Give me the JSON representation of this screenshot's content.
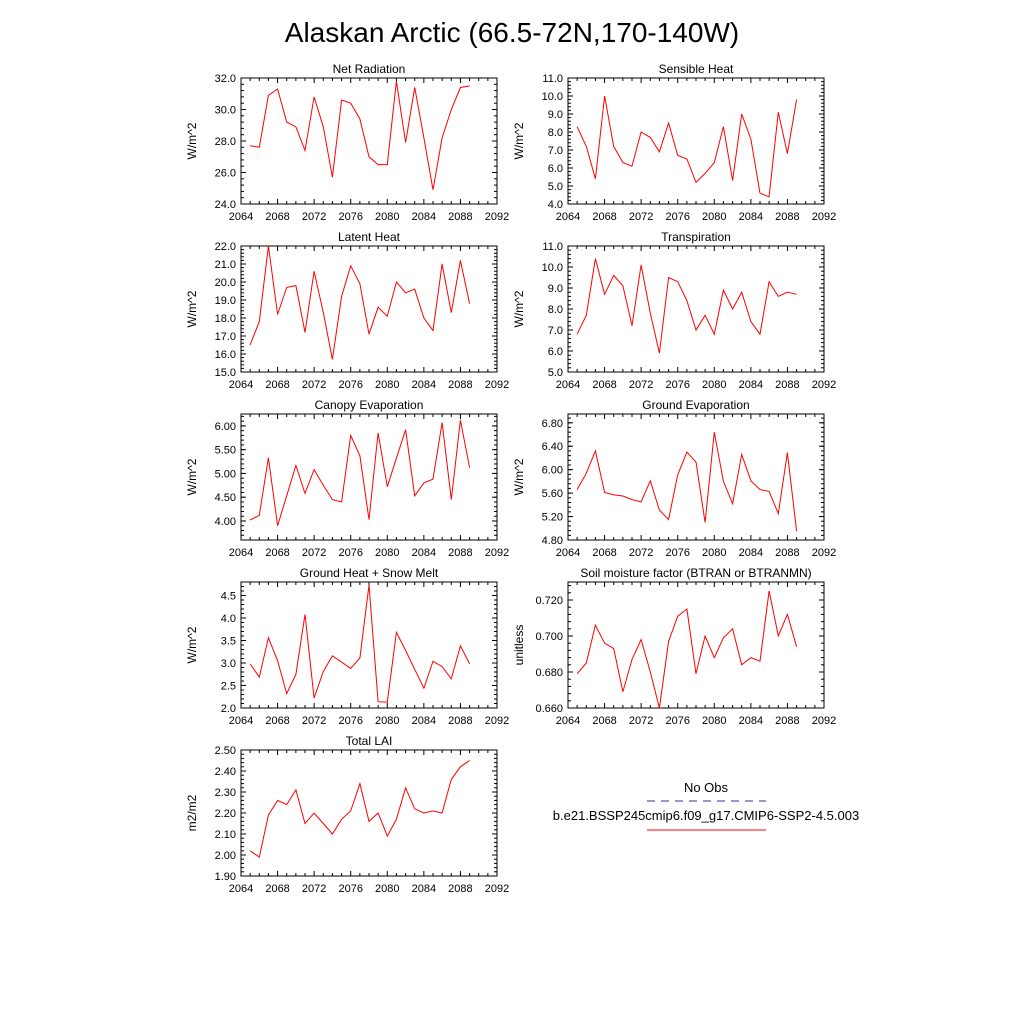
{
  "title": "Alaskan Arctic (66.5-72N,170-140W)",
  "legend": {
    "obs_label": "No Obs",
    "obs_color": "#3030a0",
    "model_label": "b.e21.BSSP245cmip6.f09_g17.CMIP6-SSP2-4.5.003",
    "model_color": "#ff0000"
  },
  "chart_data": [
    {
      "type": "line",
      "title": "Net Radiation",
      "ylabel": "W/m^2",
      "x": [
        2065,
        2066,
        2067,
        2068,
        2069,
        2070,
        2071,
        2072,
        2073,
        2074,
        2075,
        2076,
        2077,
        2078,
        2079,
        2080,
        2081,
        2082,
        2083,
        2084,
        2085,
        2086,
        2087,
        2088,
        2089
      ],
      "series": [
        {
          "values": [
            27.7,
            27.6,
            30.9,
            31.3,
            29.2,
            28.9,
            27.4,
            30.8,
            28.9,
            25.7,
            30.6,
            30.4,
            29.4,
            27.0,
            26.5,
            26.5,
            31.8,
            27.9,
            31.4,
            28.2,
            24.9,
            28.2,
            30.0,
            31.4,
            31.5
          ]
        }
      ],
      "xlim": [
        2064,
        2092
      ],
      "ylim": [
        24,
        32
      ],
      "xticks": [
        "2064",
        "2068",
        "2072",
        "2076",
        "2080",
        "2084",
        "2088",
        "2092"
      ],
      "yticks": [
        "24.0",
        "26.0",
        "28.0",
        "30.0",
        "32.0"
      ]
    },
    {
      "type": "line",
      "title": "Sensible Heat",
      "ylabel": "W/m^2",
      "x": [
        2065,
        2066,
        2067,
        2068,
        2069,
        2070,
        2071,
        2072,
        2073,
        2074,
        2075,
        2076,
        2077,
        2078,
        2079,
        2080,
        2081,
        2082,
        2083,
        2084,
        2085,
        2086,
        2087,
        2088,
        2089
      ],
      "series": [
        {
          "values": [
            8.3,
            7.2,
            5.4,
            10.0,
            7.2,
            6.3,
            6.1,
            8.0,
            7.7,
            6.9,
            8.5,
            6.7,
            6.5,
            5.2,
            5.7,
            6.3,
            8.3,
            5.3,
            9.0,
            7.6,
            4.6,
            4.4,
            9.1,
            6.8,
            9.8
          ]
        }
      ],
      "xlim": [
        2064,
        2092
      ],
      "ylim": [
        4,
        11
      ],
      "xticks": [
        "2064",
        "2068",
        "2072",
        "2076",
        "2080",
        "2084",
        "2088",
        "2092"
      ],
      "yticks": [
        "4.0",
        "5.0",
        "6.0",
        "7.0",
        "8.0",
        "9.0",
        "10.0",
        "11.0"
      ]
    },
    {
      "type": "line",
      "title": "Latent Heat",
      "ylabel": "W/m^2",
      "x": [
        2065,
        2066,
        2067,
        2068,
        2069,
        2070,
        2071,
        2072,
        2073,
        2074,
        2075,
        2076,
        2077,
        2078,
        2079,
        2080,
        2081,
        2082,
        2083,
        2084,
        2085,
        2086,
        2087,
        2088,
        2089
      ],
      "series": [
        {
          "values": [
            16.5,
            17.8,
            22.0,
            18.2,
            19.7,
            19.8,
            17.2,
            20.6,
            18.3,
            15.7,
            19.2,
            20.9,
            19.9,
            17.1,
            18.6,
            18.1,
            20.0,
            19.4,
            19.6,
            18.0,
            17.3,
            21.0,
            18.3,
            21.2,
            18.8
          ]
        }
      ],
      "xlim": [
        2064,
        2092
      ],
      "ylim": [
        15,
        22
      ],
      "xticks": [
        "2064",
        "2068",
        "2072",
        "2076",
        "2080",
        "2084",
        "2088",
        "2092"
      ],
      "yticks": [
        "15.0",
        "16.0",
        "17.0",
        "18.0",
        "19.0",
        "20.0",
        "21.0",
        "22.0"
      ]
    },
    {
      "type": "line",
      "title": "Transpiration",
      "ylabel": "W/m^2",
      "x": [
        2065,
        2066,
        2067,
        2068,
        2069,
        2070,
        2071,
        2072,
        2073,
        2074,
        2075,
        2076,
        2077,
        2078,
        2079,
        2080,
        2081,
        2082,
        2083,
        2084,
        2085,
        2086,
        2087,
        2088,
        2089
      ],
      "series": [
        {
          "values": [
            6.8,
            7.7,
            10.4,
            8.7,
            9.6,
            9.1,
            7.2,
            10.1,
            7.8,
            5.9,
            9.5,
            9.3,
            8.4,
            7.0,
            7.7,
            6.8,
            8.9,
            8.0,
            8.8,
            7.4,
            6.8,
            9.3,
            8.6,
            8.8,
            8.7
          ]
        }
      ],
      "xlim": [
        2064,
        2092
      ],
      "ylim": [
        5,
        11
      ],
      "xticks": [
        "2064",
        "2068",
        "2072",
        "2076",
        "2080",
        "2084",
        "2088",
        "2092"
      ],
      "yticks": [
        "5.0",
        "6.0",
        "7.0",
        "8.0",
        "9.0",
        "10.0",
        "11.0"
      ]
    },
    {
      "type": "line",
      "title": "Canopy Evaporation",
      "ylabel": "W/m^2",
      "x": [
        2065,
        2066,
        2067,
        2068,
        2069,
        2070,
        2071,
        2072,
        2073,
        2074,
        2075,
        2076,
        2077,
        2078,
        2079,
        2080,
        2081,
        2082,
        2083,
        2084,
        2085,
        2086,
        2087,
        2088,
        2089
      ],
      "series": [
        {
          "values": [
            4.02,
            4.12,
            5.33,
            3.9,
            4.53,
            5.17,
            4.58,
            5.08,
            4.75,
            4.45,
            4.4,
            5.8,
            5.37,
            4.03,
            5.85,
            4.72,
            5.32,
            5.92,
            4.53,
            4.8,
            4.88,
            6.07,
            4.45,
            6.12,
            5.12
          ]
        }
      ],
      "xlim": [
        2064,
        2092
      ],
      "ylim": [
        3.6,
        6.25
      ],
      "xticks": [
        "2064",
        "2068",
        "2072",
        "2076",
        "2080",
        "2084",
        "2088",
        "2092"
      ],
      "yticks": [
        "4.00",
        "4.50",
        "5.00",
        "5.50",
        "6.00"
      ]
    },
    {
      "type": "line",
      "title": "Ground Evaporation",
      "ylabel": "W/m^2",
      "x": [
        2065,
        2066,
        2067,
        2068,
        2069,
        2070,
        2071,
        2072,
        2073,
        2074,
        2075,
        2076,
        2077,
        2078,
        2079,
        2080,
        2081,
        2082,
        2083,
        2084,
        2085,
        2086,
        2087,
        2088,
        2089
      ],
      "series": [
        {
          "values": [
            5.66,
            5.94,
            6.32,
            5.61,
            5.57,
            5.55,
            5.49,
            5.45,
            5.81,
            5.31,
            5.15,
            5.91,
            6.3,
            6.13,
            5.1,
            6.64,
            5.8,
            5.42,
            6.26,
            5.81,
            5.66,
            5.63,
            5.25,
            6.29,
            4.95
          ]
        }
      ],
      "xlim": [
        2064,
        2092
      ],
      "ylim": [
        4.8,
        6.95
      ],
      "xticks": [
        "2064",
        "2068",
        "2072",
        "2076",
        "2080",
        "2084",
        "2088",
        "2092"
      ],
      "yticks": [
        "4.80",
        "5.20",
        "5.60",
        "6.00",
        "6.40",
        "6.80"
      ]
    },
    {
      "type": "line",
      "title": "Ground Heat + Snow Melt",
      "ylabel": "W/m^2",
      "x": [
        2065,
        2066,
        2067,
        2068,
        2069,
        2070,
        2071,
        2072,
        2073,
        2074,
        2075,
        2076,
        2077,
        2078,
        2079,
        2080,
        2081,
        2082,
        2083,
        2084,
        2085,
        2086,
        2087,
        2088,
        2089
      ],
      "series": [
        {
          "values": [
            2.98,
            2.69,
            3.56,
            3.05,
            2.32,
            2.75,
            4.08,
            2.22,
            2.81,
            3.16,
            3.02,
            2.88,
            3.11,
            4.73,
            2.14,
            2.13,
            3.68,
            3.28,
            2.86,
            2.44,
            3.04,
            2.92,
            2.65,
            3.38,
            2.98
          ]
        }
      ],
      "xlim": [
        2064,
        2092
      ],
      "ylim": [
        2.0,
        4.8
      ],
      "xticks": [
        "2064",
        "2068",
        "2072",
        "2076",
        "2080",
        "2084",
        "2088",
        "2092"
      ],
      "yticks": [
        "2.0",
        "2.5",
        "3.0",
        "3.5",
        "4.0",
        "4.5"
      ]
    },
    {
      "type": "line",
      "title": "Soil moisture factor (BTRAN or BTRANMN)",
      "ylabel": "unitless",
      "x": [
        2065,
        2066,
        2067,
        2068,
        2069,
        2070,
        2071,
        2072,
        2073,
        2074,
        2075,
        2076,
        2077,
        2078,
        2079,
        2080,
        2081,
        2082,
        2083,
        2084,
        2085,
        2086,
        2087,
        2088,
        2089
      ],
      "series": [
        {
          "values": [
            0.679,
            0.685,
            0.706,
            0.696,
            0.693,
            0.669,
            0.687,
            0.698,
            0.68,
            0.66,
            0.697,
            0.711,
            0.715,
            0.679,
            0.7,
            0.688,
            0.699,
            0.704,
            0.684,
            0.688,
            0.686,
            0.725,
            0.7,
            0.712,
            0.694
          ]
        }
      ],
      "xlim": [
        2064,
        2092
      ],
      "ylim": [
        0.66,
        0.73
      ],
      "xticks": [
        "2064",
        "2068",
        "2072",
        "2076",
        "2080",
        "2084",
        "2088",
        "2092"
      ],
      "yticks": [
        "0.660",
        "0.680",
        "0.700",
        "0.720"
      ]
    },
    {
      "type": "line",
      "title": "Total LAI",
      "ylabel": "m2/m2",
      "x": [
        2065,
        2066,
        2067,
        2068,
        2069,
        2070,
        2071,
        2072,
        2073,
        2074,
        2075,
        2076,
        2077,
        2078,
        2079,
        2080,
        2081,
        2082,
        2083,
        2084,
        2085,
        2086,
        2087,
        2088,
        2089
      ],
      "series": [
        {
          "values": [
            2.02,
            1.99,
            2.19,
            2.26,
            2.24,
            2.31,
            2.15,
            2.2,
            2.15,
            2.1,
            2.17,
            2.21,
            2.34,
            2.16,
            2.2,
            2.09,
            2.17,
            2.32,
            2.22,
            2.2,
            2.21,
            2.2,
            2.36,
            2.42,
            2.45
          ]
        }
      ],
      "xlim": [
        2064,
        2092
      ],
      "ylim": [
        1.9,
        2.5
      ],
      "xticks": [
        "2064",
        "2068",
        "2072",
        "2076",
        "2080",
        "2084",
        "2088",
        "2092"
      ],
      "yticks": [
        "1.90",
        "2.00",
        "2.10",
        "2.20",
        "2.30",
        "2.40",
        "2.50"
      ]
    }
  ]
}
